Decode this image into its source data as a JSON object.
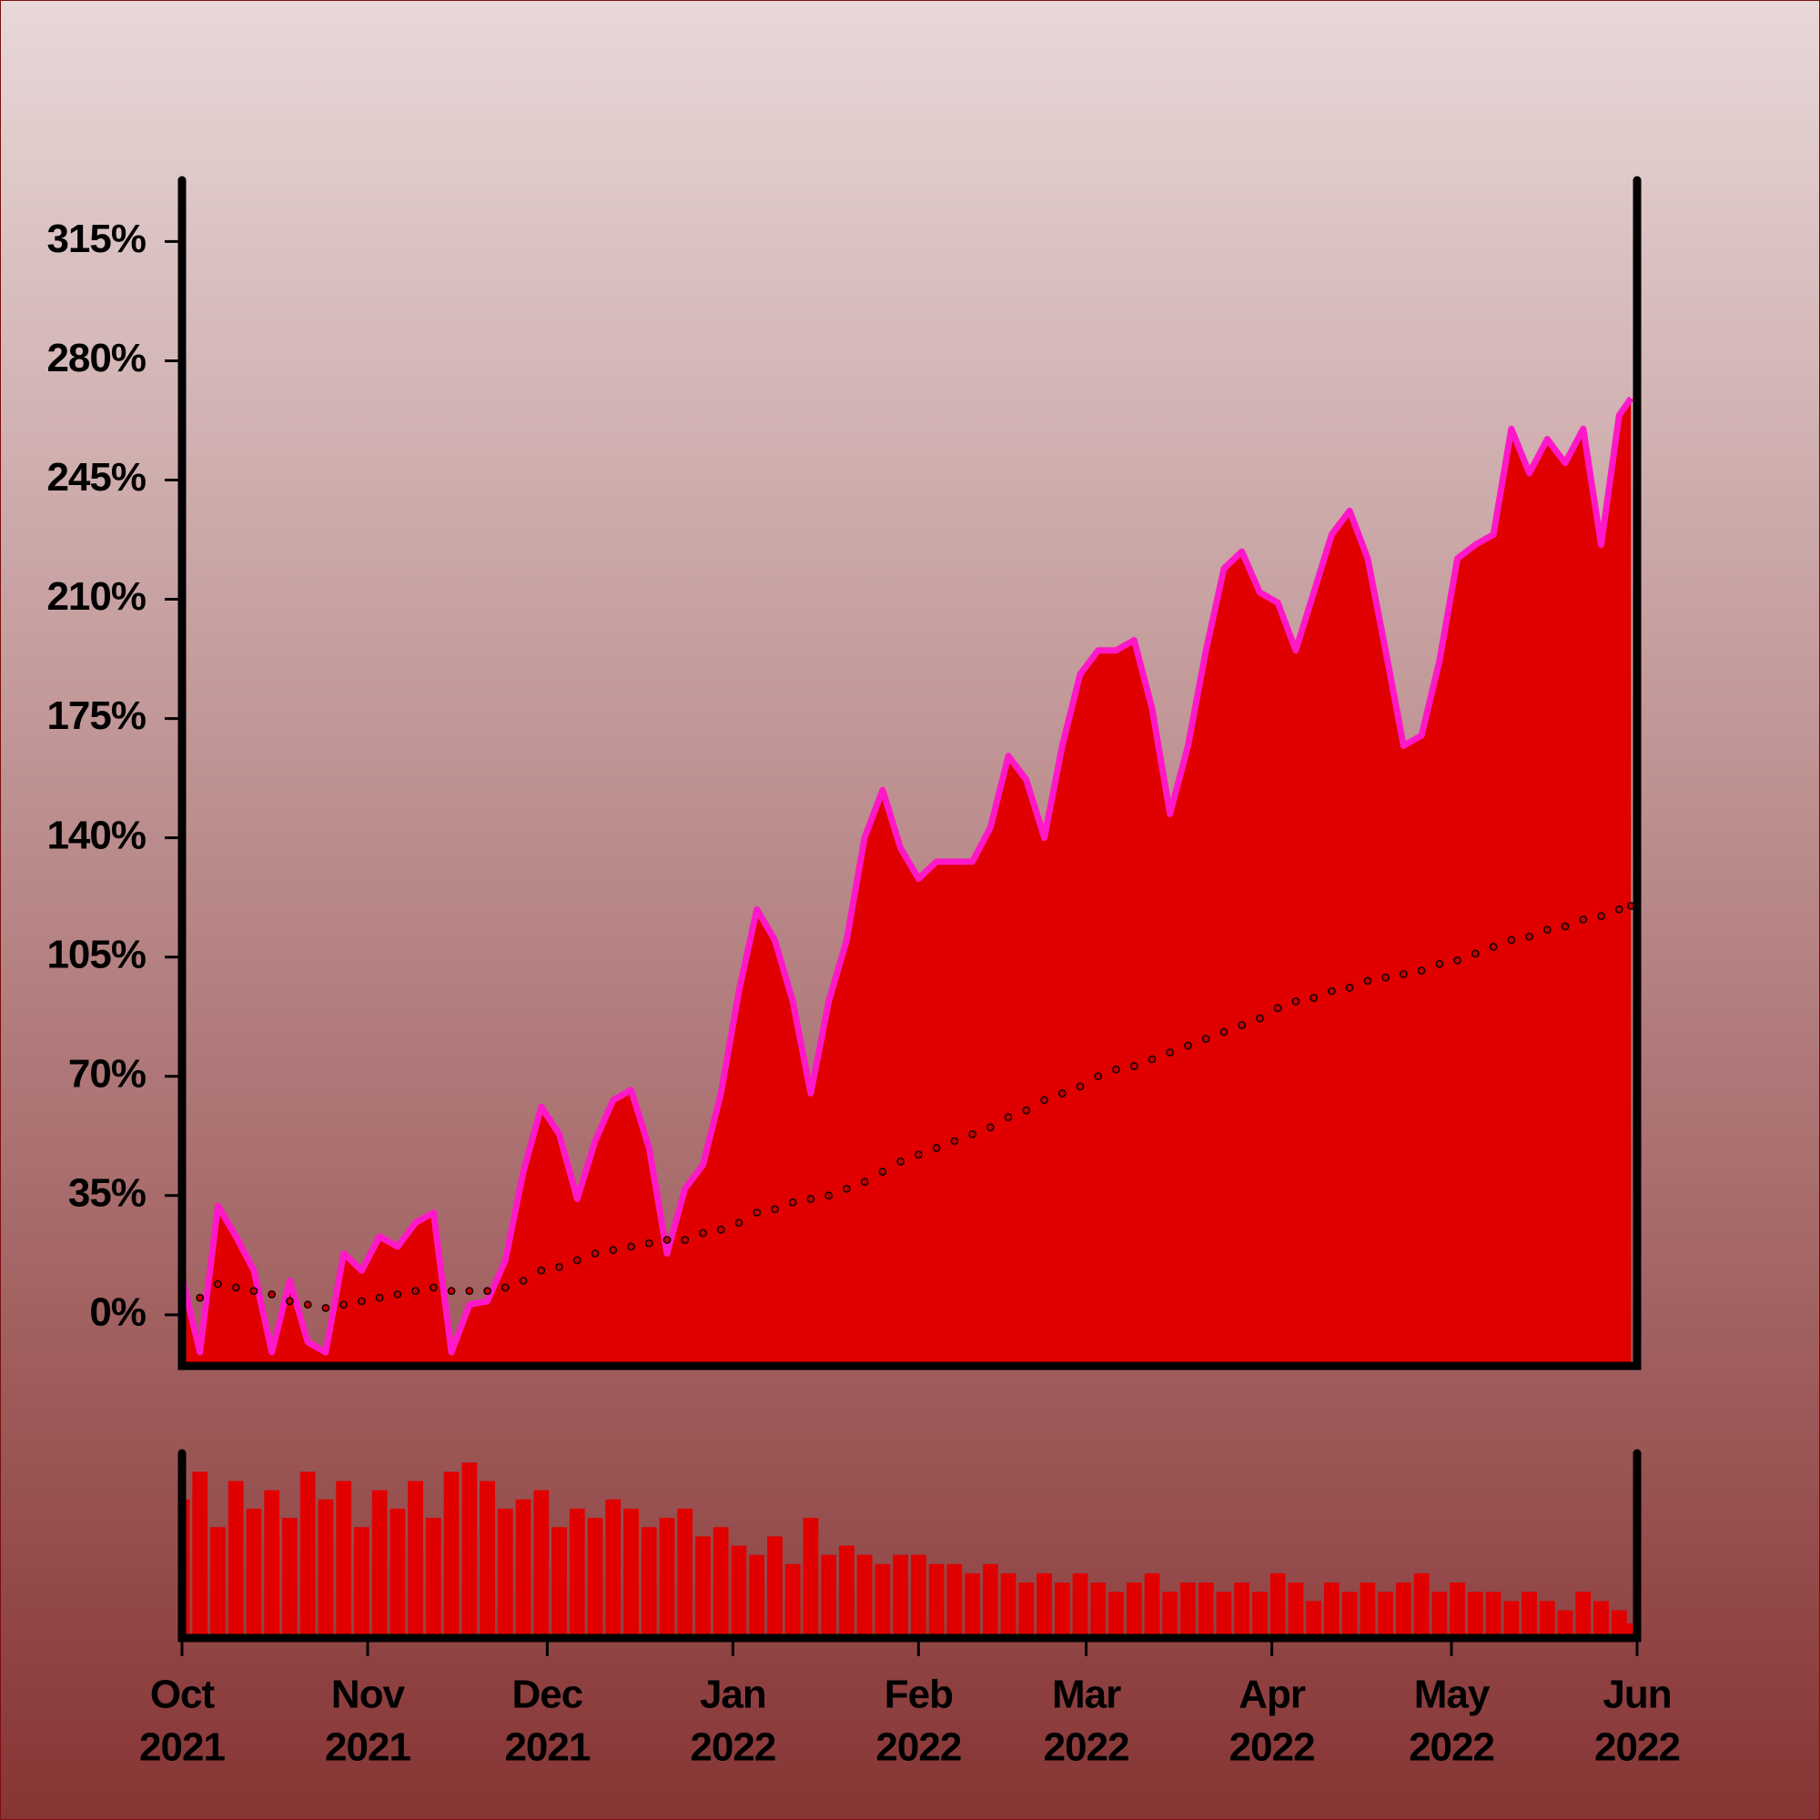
{
  "chart_data": [
    {
      "type": "area",
      "x": [
        0,
        3,
        6,
        9,
        12,
        15,
        18,
        21,
        24,
        27,
        30,
        33,
        36,
        39,
        42,
        45,
        48,
        51,
        54,
        57,
        60,
        63,
        66,
        69,
        72,
        75,
        78,
        81,
        84,
        87,
        90,
        93,
        96,
        99,
        102,
        105,
        108,
        111,
        114,
        117,
        120,
        123,
        126,
        129,
        132,
        135,
        138,
        141,
        144,
        147,
        150,
        153,
        156,
        159,
        162,
        165,
        168,
        171,
        174,
        177,
        180,
        183,
        186,
        189,
        192,
        195,
        198,
        201,
        204,
        207,
        210,
        213,
        216,
        219,
        222,
        225,
        228,
        231,
        234,
        237,
        240,
        242
      ],
      "series": [
        {
          "type": "area",
          "color": "#e00000",
          "edge_color": "#ff18c8",
          "values": [
            11,
            -11,
            32,
            23,
            13,
            -11,
            10,
            -8,
            -11,
            18,
            13,
            23,
            20,
            27,
            30,
            -11,
            3,
            4,
            16,
            42,
            61,
            53,
            34,
            51,
            63,
            66,
            49,
            18,
            37,
            44,
            65,
            95,
            119,
            110,
            92,
            65,
            92,
            110,
            140,
            154,
            137,
            128,
            133,
            133,
            133,
            143,
            164,
            157,
            140,
            167,
            188,
            195,
            195,
            198,
            178,
            147,
            167,
            195,
            219,
            224,
            212,
            209,
            195,
            212,
            229,
            236,
            222,
            195,
            167,
            170,
            192,
            222,
            226,
            229,
            260,
            247,
            257,
            250,
            260,
            226,
            264,
            269
          ]
        },
        {
          "type": "line",
          "color": "#1a0000",
          "marker_fill": "#c80000",
          "values": [
            0,
            5,
            9,
            8,
            7,
            6,
            4,
            3,
            2,
            3,
            4,
            5,
            6,
            7,
            8,
            7,
            7,
            7,
            8,
            10,
            13,
            14,
            16,
            18,
            19,
            20,
            21,
            22,
            22,
            24,
            25,
            27,
            30,
            31,
            33,
            34,
            35,
            37,
            39,
            42,
            45,
            47,
            49,
            51,
            53,
            55,
            58,
            60,
            63,
            65,
            67,
            70,
            72,
            73,
            75,
            77,
            79,
            81,
            83,
            85,
            87,
            90,
            92,
            93,
            95,
            96,
            98,
            99,
            100,
            101,
            103,
            104,
            106,
            108,
            110,
            111,
            113,
            114,
            116,
            117,
            119,
            120
          ]
        }
      ],
      "xlim": [
        0,
        243
      ],
      "ylim": [
        -15,
        333
      ],
      "yticks": [
        {
          "value": 0,
          "label": "0%"
        },
        {
          "value": 35,
          "label": "35%"
        },
        {
          "value": 70,
          "label": "70%"
        },
        {
          "value": 105,
          "label": "105%"
        },
        {
          "value": 140,
          "label": "140%"
        },
        {
          "value": 175,
          "label": "175%"
        },
        {
          "value": 210,
          "label": "210%"
        },
        {
          "value": 245,
          "label": "245%"
        },
        {
          "value": 280,
          "label": "280%"
        },
        {
          "value": 315,
          "label": "315%"
        }
      ]
    },
    {
      "type": "bar",
      "color": "#e00000",
      "values": [
        75,
        90,
        60,
        85,
        70,
        80,
        65,
        90,
        75,
        85,
        60,
        80,
        70,
        85,
        65,
        90,
        95,
        85,
        70,
        75,
        80,
        60,
        70,
        65,
        75,
        70,
        60,
        65,
        70,
        55,
        60,
        50,
        45,
        55,
        40,
        65,
        45,
        50,
        45,
        40,
        45,
        45,
        40,
        40,
        35,
        40,
        35,
        30,
        35,
        30,
        35,
        30,
        25,
        30,
        35,
        25,
        30,
        30,
        25,
        30,
        25,
        35,
        30,
        20,
        30,
        25,
        30,
        25,
        30,
        35,
        25,
        30,
        25,
        25,
        20,
        25,
        20,
        15,
        25,
        20,
        15,
        8
      ],
      "xlim": [
        0,
        243
      ],
      "ylim": [
        0,
        100
      ],
      "xticks": [
        {
          "value": 0,
          "label": [
            "Oct",
            "2021"
          ]
        },
        {
          "value": 31,
          "label": [
            "Nov",
            "2021"
          ]
        },
        {
          "value": 61,
          "label": [
            "Dec",
            "2021"
          ]
        },
        {
          "value": 92,
          "label": [
            "Jan",
            "2022"
          ]
        },
        {
          "value": 123,
          "label": [
            "Feb",
            "2022"
          ]
        },
        {
          "value": 151,
          "label": [
            "Mar",
            "2022"
          ]
        },
        {
          "value": 182,
          "label": [
            "Apr",
            "2022"
          ]
        },
        {
          "value": 212,
          "label": [
            "May",
            "2022"
          ]
        },
        {
          "value": 243,
          "label": [
            "Jun",
            "2022"
          ]
        }
      ]
    }
  ]
}
